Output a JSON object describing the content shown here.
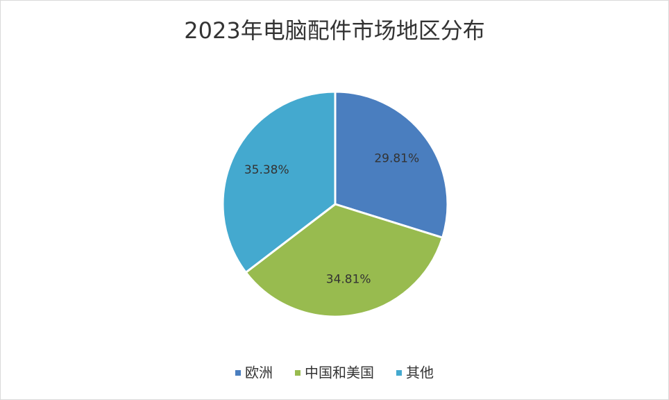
{
  "chart_data": {
    "type": "pie",
    "title": "2023年电脑配件市场地区分布",
    "categories": [
      "欧洲",
      "中国和美国",
      "其他"
    ],
    "values": [
      29.81,
      34.81,
      35.38
    ],
    "value_labels": [
      "29.81%",
      "34.81%",
      "35.38%"
    ],
    "colors": [
      "#4a7ebf",
      "#98bb4f",
      "#44a9cf"
    ],
    "legend": "bottom"
  }
}
